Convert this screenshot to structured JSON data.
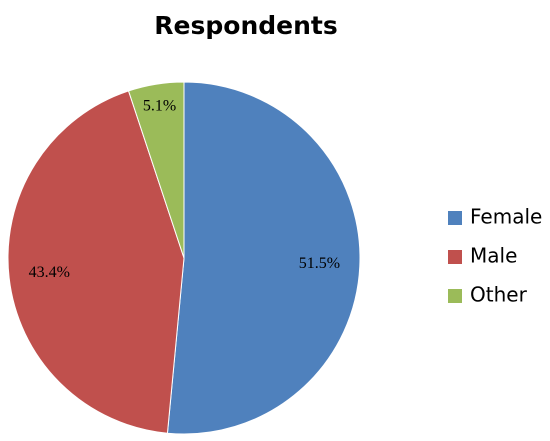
{
  "chart_data": {
    "type": "pie",
    "title": "Respondents",
    "categories": [
      "Female",
      "Male",
      "Other"
    ],
    "values": [
      51.5,
      43.4,
      5.1
    ],
    "labels": [
      "51.5%",
      "43.4%",
      "5.1%"
    ],
    "colors": [
      "#4F81BD",
      "#C0504D",
      "#9BBB59"
    ],
    "legend_position": "right"
  }
}
